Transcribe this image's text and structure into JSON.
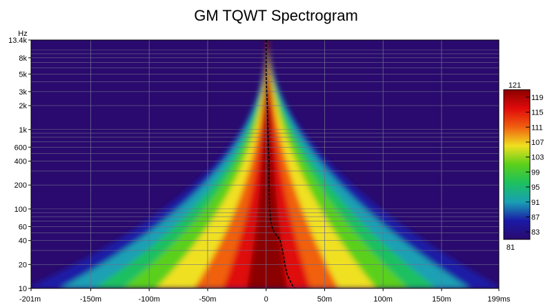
{
  "chart_data": {
    "type": "heatmap",
    "title": "GM TQWT Spectrogram",
    "ylabel": "Hz",
    "xlabel": "",
    "x_unit": "ms",
    "x_range_ms": [
      -201,
      199
    ],
    "y_range_hz": [
      10,
      13400
    ],
    "y_scale": "log",
    "grid": true,
    "x_ticks": [
      {
        "value": -201,
        "label": "-201m"
      },
      {
        "value": -150,
        "label": "-150m"
      },
      {
        "value": -100,
        "label": "-100m"
      },
      {
        "value": -50,
        "label": "-50m"
      },
      {
        "value": 0,
        "label": "0"
      },
      {
        "value": 50,
        "label": "50m"
      },
      {
        "value": 100,
        "label": "100m"
      },
      {
        "value": 150,
        "label": "150m"
      },
      {
        "value": 199,
        "label": "199ms"
      }
    ],
    "y_ticks": [
      {
        "value": 13400,
        "label": "13.4k"
      },
      {
        "value": 8000,
        "label": "8k"
      },
      {
        "value": 5000,
        "label": "5k"
      },
      {
        "value": 3000,
        "label": "3k"
      },
      {
        "value": 2000,
        "label": "2k"
      },
      {
        "value": 1000,
        "label": "1k"
      },
      {
        "value": 600,
        "label": "600"
      },
      {
        "value": 400,
        "label": "400"
      },
      {
        "value": 200,
        "label": "200"
      },
      {
        "value": 100,
        "label": "100"
      },
      {
        "value": 60,
        "label": "60"
      },
      {
        "value": 40,
        "label": "40"
      },
      {
        "value": 20,
        "label": "20"
      },
      {
        "value": 10,
        "label": "10"
      }
    ],
    "colorbar": {
      "min": 81,
      "max": 121,
      "top_label": "121",
      "bottom_label": "81",
      "tick_labels": [
        "119",
        "115",
        "111",
        "107",
        "103",
        "99",
        "95",
        "91",
        "87",
        "83"
      ],
      "tick_values": [
        119,
        115,
        111,
        107,
        103,
        99,
        95,
        91,
        87,
        83
      ],
      "colors": [
        "#2a0a6e",
        "#1a1aa6",
        "#1aa0b4",
        "#1cc060",
        "#5ad01a",
        "#f0e020",
        "#f06010",
        "#e00a0a",
        "#8b0000"
      ]
    },
    "peak_delay_curve": {
      "frequencies_hz": [
        13400,
        8000,
        5000,
        3000,
        2000,
        1000,
        600,
        400,
        200,
        100,
        70,
        60,
        50,
        45,
        40,
        35,
        30,
        25,
        20,
        15,
        12,
        10
      ],
      "time_ms": [
        0,
        0,
        0,
        0.5,
        1,
        1.5,
        2,
        2.5,
        2.5,
        3,
        4,
        5,
        7,
        10,
        12,
        13,
        14,
        15,
        16,
        18,
        21,
        24
      ]
    },
    "colors": {
      "background": "#2a0a6e",
      "grid": "#6e6e8c",
      "axis": "#000000"
    }
  }
}
